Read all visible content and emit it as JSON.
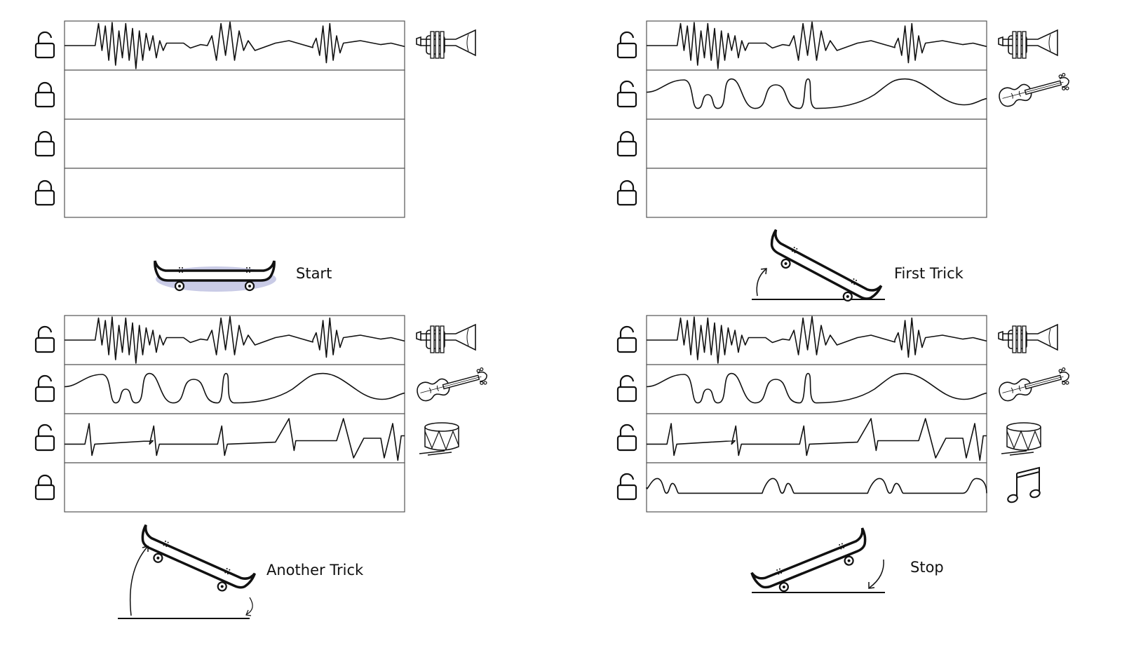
{
  "panels": [
    {
      "id": "start",
      "caption": "Start",
      "tracks": [
        {
          "state": "unlocked",
          "waveform": "jagged",
          "instrument": "trumpet-icon"
        },
        {
          "state": "locked",
          "waveform": "none",
          "instrument": ""
        },
        {
          "state": "locked",
          "waveform": "none",
          "instrument": ""
        },
        {
          "state": "locked",
          "waveform": "none",
          "instrument": ""
        }
      ],
      "pose": "flat"
    },
    {
      "id": "first-trick",
      "caption": "First Trick",
      "tracks": [
        {
          "state": "unlocked",
          "waveform": "jagged",
          "instrument": "trumpet-icon"
        },
        {
          "state": "unlocked",
          "waveform": "wavy",
          "instrument": "violin-icon"
        },
        {
          "state": "locked",
          "waveform": "none",
          "instrument": ""
        },
        {
          "state": "locked",
          "waveform": "none",
          "instrument": ""
        }
      ],
      "pose": "tail-down"
    },
    {
      "id": "another-trick",
      "caption": "Another Trick",
      "tracks": [
        {
          "state": "unlocked",
          "waveform": "jagged",
          "instrument": "trumpet-icon"
        },
        {
          "state": "unlocked",
          "waveform": "wavy",
          "instrument": "violin-icon"
        },
        {
          "state": "unlocked",
          "waveform": "spikes",
          "instrument": "drum-icon"
        },
        {
          "state": "locked",
          "waveform": "none",
          "instrument": ""
        }
      ],
      "pose": "tail-down-high"
    },
    {
      "id": "stop",
      "caption": "Stop",
      "tracks": [
        {
          "state": "unlocked",
          "waveform": "jagged",
          "instrument": "trumpet-icon"
        },
        {
          "state": "unlocked",
          "waveform": "wavy",
          "instrument": "violin-icon"
        },
        {
          "state": "unlocked",
          "waveform": "spikes",
          "instrument": "drum-icon"
        },
        {
          "state": "unlocked",
          "waveform": "bumps",
          "instrument": "music-note-icon"
        }
      ],
      "pose": "nose-down"
    }
  ],
  "colors": {
    "ink": "#111111",
    "track_border": "#555555",
    "shadow": "#c9cbe6"
  }
}
